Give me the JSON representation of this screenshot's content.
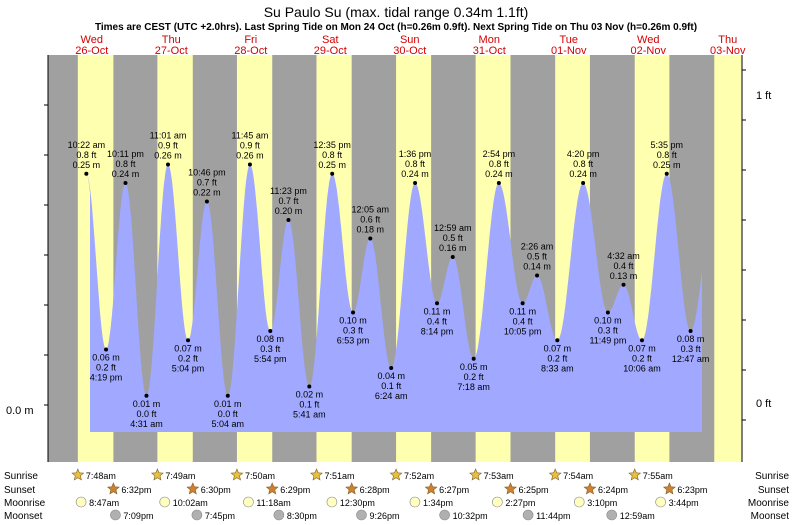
{
  "chart_data": {
    "type": "area",
    "title": "Su Paulo Su (max. tidal range 0.34m 1.1ft)",
    "subtitle": "Times are CEST (UTC +2.0hrs). Last Spring Tide on Mon 24 Oct (h=0.26m 0.9ft). Next Spring Tide on Thu 03 Nov (h=0.26m 0.9ft)",
    "y_left_label": "0.0 m",
    "y_right_labels": [
      "1 ft",
      "0 ft"
    ],
    "ylim_m": [
      -0.02,
      0.3
    ],
    "days": [
      {
        "name": "Wed",
        "date": "26-Oct"
      },
      {
        "name": "Thu",
        "date": "27-Oct"
      },
      {
        "name": "Fri",
        "date": "28-Oct"
      },
      {
        "name": "Sat",
        "date": "29-Oct"
      },
      {
        "name": "Sun",
        "date": "30-Oct"
      },
      {
        "name": "Mon",
        "date": "31-Oct"
      },
      {
        "name": "Tue",
        "date": "01-Nov"
      },
      {
        "name": "Wed",
        "date": "02-Nov"
      },
      {
        "name": "Thu",
        "date": "03-Nov"
      }
    ],
    "tides": [
      {
        "day": 0,
        "time": "10:22 am",
        "ft": "0.8 ft",
        "m": 0.25,
        "m_label": "0.25 m",
        "type": "high"
      },
      {
        "day": 0,
        "time": "4:19 pm",
        "ft": "0.2 ft",
        "m": 0.06,
        "m_label": "0.06 m",
        "type": "low"
      },
      {
        "day": 0,
        "time": "10:11 pm",
        "ft": "0.8 ft",
        "m": 0.24,
        "m_label": "0.24 m",
        "type": "high"
      },
      {
        "day": 1,
        "time": "4:31 am",
        "ft": "0.0 ft",
        "m": 0.01,
        "m_label": "0.01 m",
        "type": "low"
      },
      {
        "day": 1,
        "time": "11:01 am",
        "ft": "0.9 ft",
        "m": 0.26,
        "m_label": "0.26 m",
        "type": "high"
      },
      {
        "day": 1,
        "time": "5:04 pm",
        "ft": "0.2 ft",
        "m": 0.07,
        "m_label": "0.07 m",
        "type": "low"
      },
      {
        "day": 1,
        "time": "10:46 pm",
        "ft": "0.7 ft",
        "m": 0.22,
        "m_label": "0.22 m",
        "type": "high"
      },
      {
        "day": 2,
        "time": "5:04 am",
        "ft": "0.0 ft",
        "m": 0.01,
        "m_label": "0.01 m",
        "type": "low"
      },
      {
        "day": 2,
        "time": "11:45 am",
        "ft": "0.9 ft",
        "m": 0.26,
        "m_label": "0.26 m",
        "type": "high"
      },
      {
        "day": 2,
        "time": "5:54 pm",
        "ft": "0.3 ft",
        "m": 0.08,
        "m_label": "0.08 m",
        "type": "low"
      },
      {
        "day": 2,
        "time": "11:23 pm",
        "ft": "0.7 ft",
        "m": 0.2,
        "m_label": "0.20 m",
        "type": "high"
      },
      {
        "day": 3,
        "time": "5:41 am",
        "ft": "0.1 ft",
        "m": 0.02,
        "m_label": "0.02 m",
        "type": "low"
      },
      {
        "day": 3,
        "time": "12:35 pm",
        "ft": "0.8 ft",
        "m": 0.25,
        "m_label": "0.25 m",
        "type": "high"
      },
      {
        "day": 3,
        "time": "6:53 pm",
        "ft": "0.3 ft",
        "m": 0.1,
        "m_label": "0.10 m",
        "type": "low"
      },
      {
        "day": 4,
        "time": "12:05 am",
        "ft": "0.6 ft",
        "m": 0.18,
        "m_label": "0.18 m",
        "type": "high"
      },
      {
        "day": 4,
        "time": "6:24 am",
        "ft": "0.1 ft",
        "m": 0.04,
        "m_label": "0.04 m",
        "type": "low"
      },
      {
        "day": 4,
        "time": "1:36 pm",
        "ft": "0.8 ft",
        "m": 0.24,
        "m_label": "0.24 m",
        "type": "high"
      },
      {
        "day": 4,
        "time": "8:14 pm",
        "ft": "0.4 ft",
        "m": 0.11,
        "m_label": "0.11 m",
        "type": "low"
      },
      {
        "day": 5,
        "time": "12:59 am",
        "ft": "0.5 ft",
        "m": 0.16,
        "m_label": "0.16 m",
        "type": "high"
      },
      {
        "day": 5,
        "time": "7:18 am",
        "ft": "0.2 ft",
        "m": 0.05,
        "m_label": "0.05 m",
        "type": "low"
      },
      {
        "day": 5,
        "time": "2:54 pm",
        "ft": "0.8 ft",
        "m": 0.24,
        "m_label": "0.24 m",
        "type": "high"
      },
      {
        "day": 5,
        "time": "10:05 pm",
        "ft": "0.4 ft",
        "m": 0.11,
        "m_label": "0.11 m",
        "type": "low"
      },
      {
        "day": 6,
        "time": "2:26 am",
        "ft": "0.5 ft",
        "m": 0.14,
        "m_label": "0.14 m",
        "type": "high"
      },
      {
        "day": 6,
        "time": "8:33 am",
        "ft": "0.2 ft",
        "m": 0.07,
        "m_label": "0.07 m",
        "type": "low"
      },
      {
        "day": 6,
        "time": "4:20 pm",
        "ft": "0.8 ft",
        "m": 0.24,
        "m_label": "0.24 m",
        "type": "high"
      },
      {
        "day": 6,
        "time": "11:49 pm",
        "ft": "0.3 ft",
        "m": 0.1,
        "m_label": "0.10 m",
        "type": "low"
      },
      {
        "day": 7,
        "time": "4:32 am",
        "ft": "0.4 ft",
        "m": 0.13,
        "m_label": "0.13 m",
        "type": "high"
      },
      {
        "day": 7,
        "time": "10:06 am",
        "ft": "0.2 ft",
        "m": 0.07,
        "m_label": "0.07 m",
        "type": "low"
      },
      {
        "day": 7,
        "time": "5:35 pm",
        "ft": "0.8 ft",
        "m": 0.25,
        "m_label": "0.25 m",
        "type": "high"
      },
      {
        "day": 8,
        "time": "12:47 am",
        "ft": "0.3 ft",
        "m": 0.08,
        "m_label": "0.08 m",
        "type": "low"
      }
    ],
    "rows": {
      "sunrise_label": "Sunrise",
      "sunset_label": "Sunset",
      "moonrise_label": "Moonrise",
      "moonset_label": "Moonset",
      "sunrise": [
        "7:48am",
        "7:49am",
        "7:50am",
        "7:51am",
        "7:52am",
        "7:53am",
        "7:54am",
        "7:55am"
      ],
      "sunset": [
        "6:32pm",
        "6:30pm",
        "6:29pm",
        "6:28pm",
        "6:27pm",
        "6:25pm",
        "6:24pm",
        "6:23pm"
      ],
      "moonrise": [
        "8:47am",
        "10:02am",
        "11:18am",
        "12:30pm",
        "1:34pm",
        "2:27pm",
        "3:10pm",
        "3:44pm"
      ],
      "moonset": [
        "7:09pm",
        "7:45pm",
        "8:30pm",
        "9:26pm",
        "10:32pm",
        "11:44pm",
        "12:59am"
      ]
    },
    "colors": {
      "night": "#a0a0a0",
      "day": "#ffffb0",
      "water": "#a0a8ff",
      "day_header": "#d40000",
      "sun": "#e8c040",
      "sunset": "#d08030",
      "moonrise": "#ffffc0",
      "moonset": "#b0b0b0"
    }
  }
}
